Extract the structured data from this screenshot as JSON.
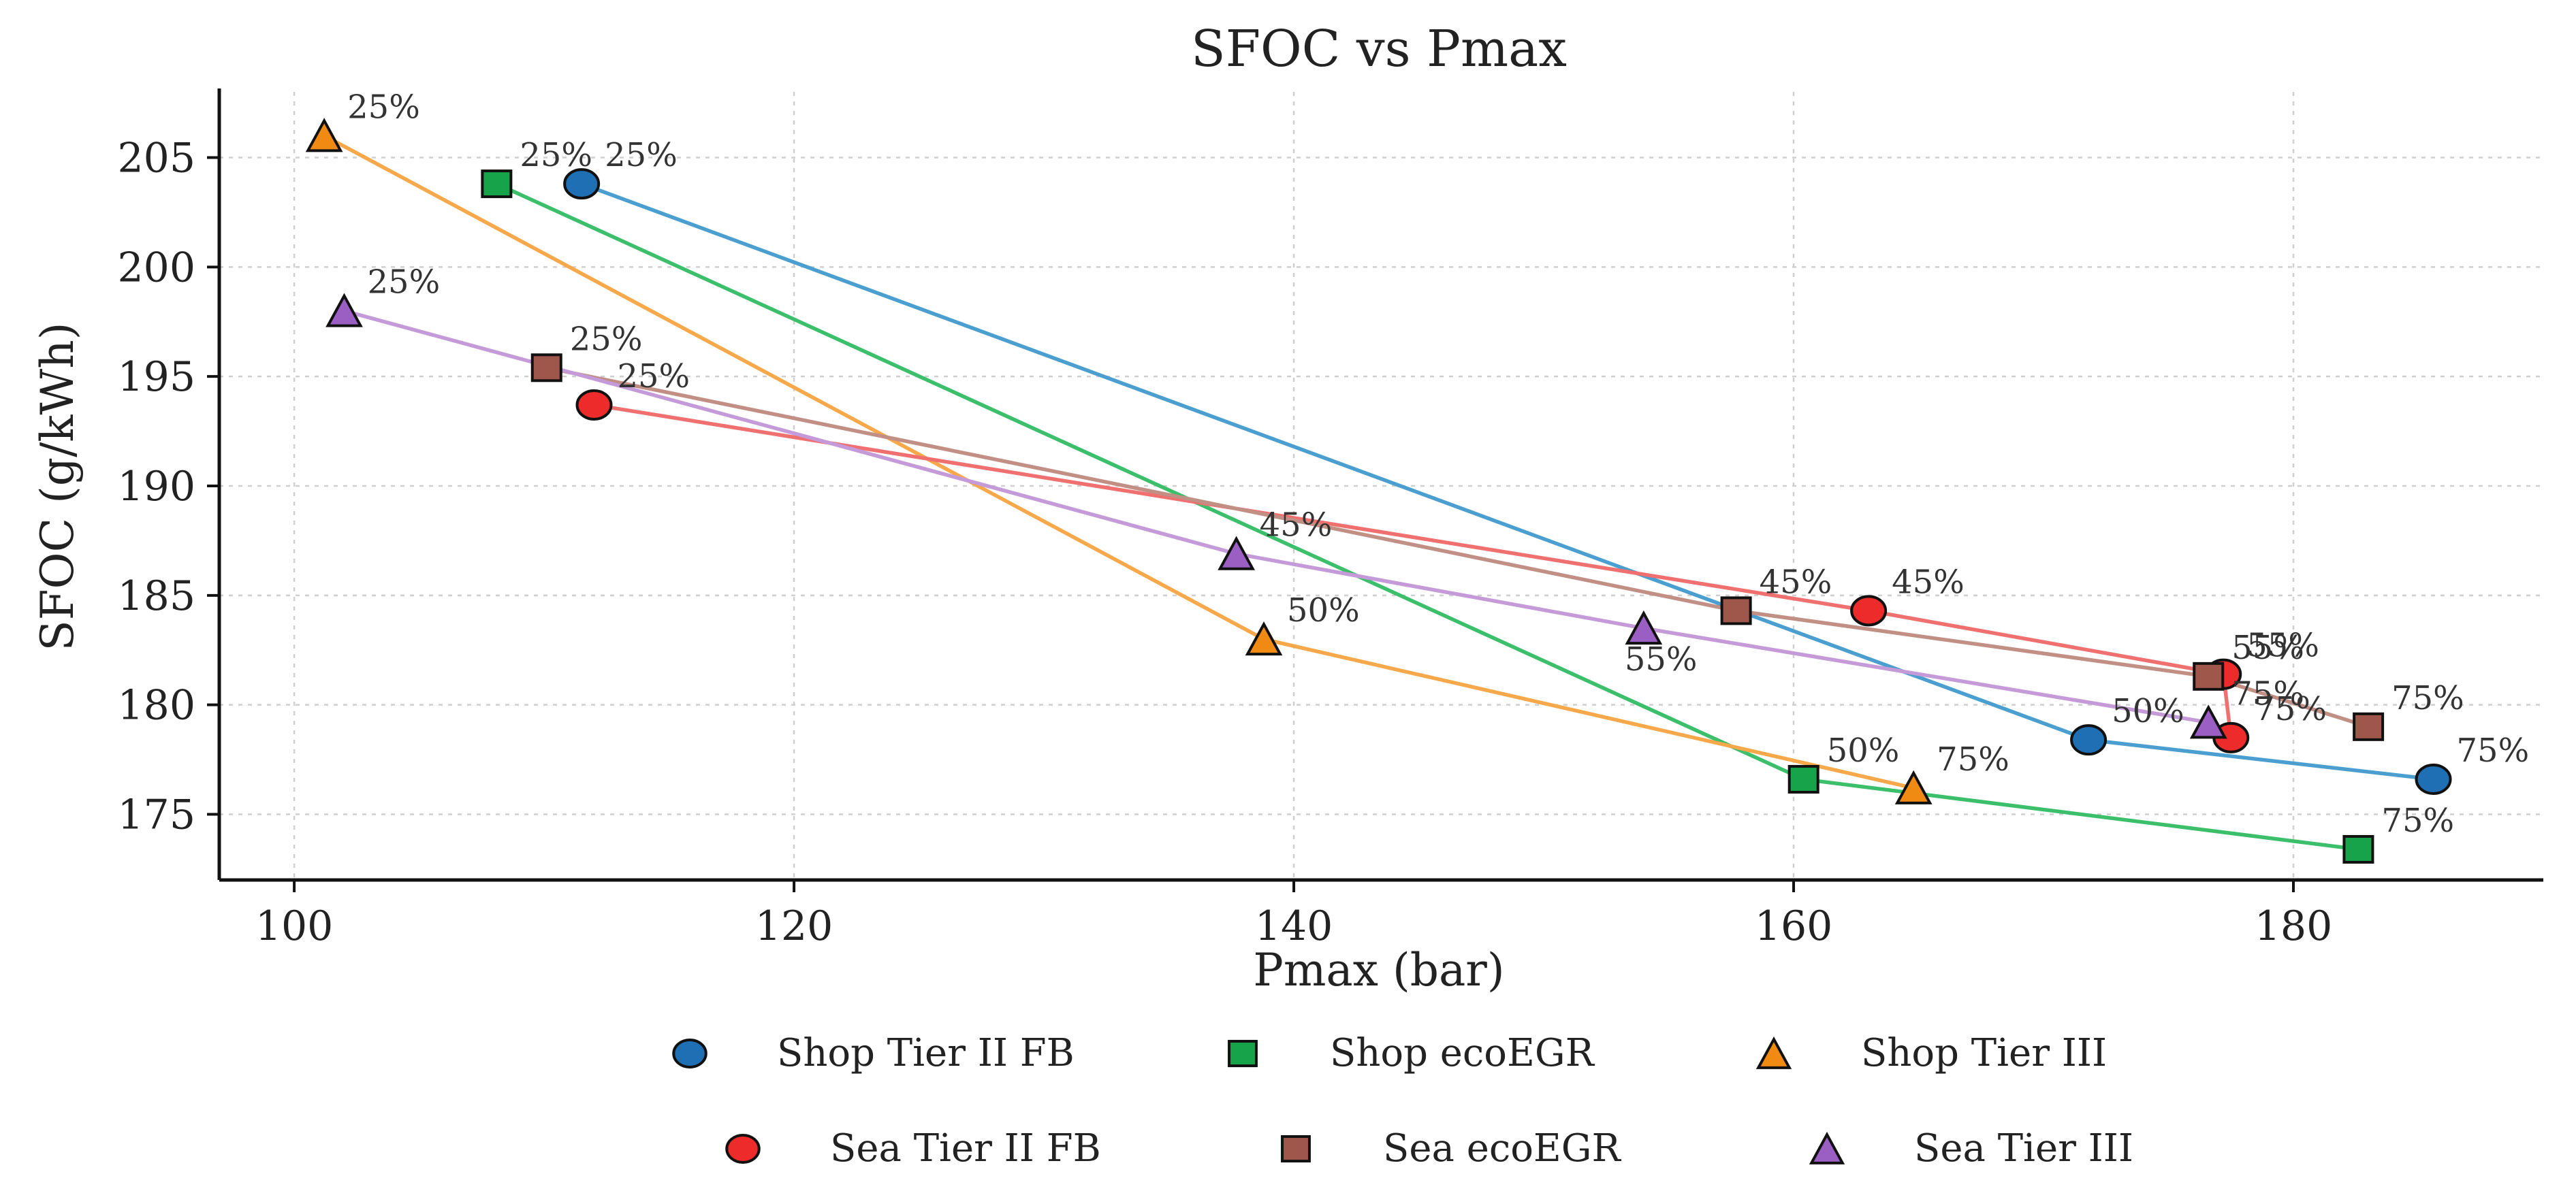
{
  "chart_data": {
    "type": "line",
    "title": "SFOC vs Pmax",
    "xlabel": "Pmax (bar)",
    "ylabel": "SFOC (g/kWh)",
    "xlim": [
      97,
      190
    ],
    "ylim": [
      172,
      208
    ],
    "xticks": [
      100,
      120,
      140,
      160,
      180
    ],
    "yticks": [
      175,
      180,
      185,
      190,
      195,
      200,
      205
    ],
    "grid": true,
    "legend_position": "bottom",
    "series": [
      {
        "name": "Shop Tier II FB",
        "marker": "circle",
        "line_color": "#4a9fd0",
        "fill_color": "#1f6fb4",
        "points": [
          {
            "x": 111.5,
            "y": 203.8,
            "label": "25%"
          },
          {
            "x": 171.8,
            "y": 178.4,
            "label": "50%"
          },
          {
            "x": 185.6,
            "y": 176.6,
            "label": "75%"
          }
        ]
      },
      {
        "name": "Shop ecoEGR",
        "marker": "square",
        "line_color": "#3cbf6a",
        "fill_color": "#16a34a",
        "points": [
          {
            "x": 108.1,
            "y": 203.8,
            "label": "25%"
          },
          {
            "x": 160.4,
            "y": 176.6,
            "label": "50%"
          },
          {
            "x": 182.6,
            "y": 173.4,
            "label": "75%"
          }
        ]
      },
      {
        "name": "Shop Tier III",
        "marker": "triangle",
        "line_color": "#f7a84a",
        "fill_color": "#f08a12",
        "points": [
          {
            "x": 101.2,
            "y": 206.0,
            "label": "25%"
          },
          {
            "x": 138.8,
            "y": 183.0,
            "label": "50%"
          },
          {
            "x": 164.8,
            "y": 176.2,
            "label": "75%"
          }
        ]
      },
      {
        "name": "Sea Tier II FB",
        "marker": "circle",
        "line_color": "#f07070",
        "fill_color": "#ee2b2b",
        "points": [
          {
            "x": 112.0,
            "y": 193.7,
            "label": "25%"
          },
          {
            "x": 163.0,
            "y": 184.3,
            "label": "45%"
          },
          {
            "x": 177.2,
            "y": 181.4,
            "label": "55%"
          },
          {
            "x": 177.5,
            "y": 178.5,
            "label": "75%"
          }
        ]
      },
      {
        "name": "Sea ecoEGR",
        "marker": "square",
        "line_color": "#c28f85",
        "fill_color": "#a0574b",
        "points": [
          {
            "x": 110.1,
            "y": 195.4,
            "label": "25%"
          },
          {
            "x": 157.7,
            "y": 184.3,
            "label": "45%"
          },
          {
            "x": 176.6,
            "y": 181.3,
            "label": "55%"
          },
          {
            "x": 183.0,
            "y": 179.0,
            "label": "75%"
          }
        ]
      },
      {
        "name": "Sea Tier III",
        "marker": "triangle",
        "line_color": "#c49ad8",
        "fill_color": "#9b5fc3",
        "points": [
          {
            "x": 102.0,
            "y": 198.0,
            "label": "25%"
          },
          {
            "x": 137.7,
            "y": 186.9,
            "label": "45%"
          },
          {
            "x": 154.0,
            "y": 183.5,
            "label": "55%"
          },
          {
            "x": 176.6,
            "y": 179.2,
            "label": "75%"
          }
        ]
      }
    ]
  }
}
